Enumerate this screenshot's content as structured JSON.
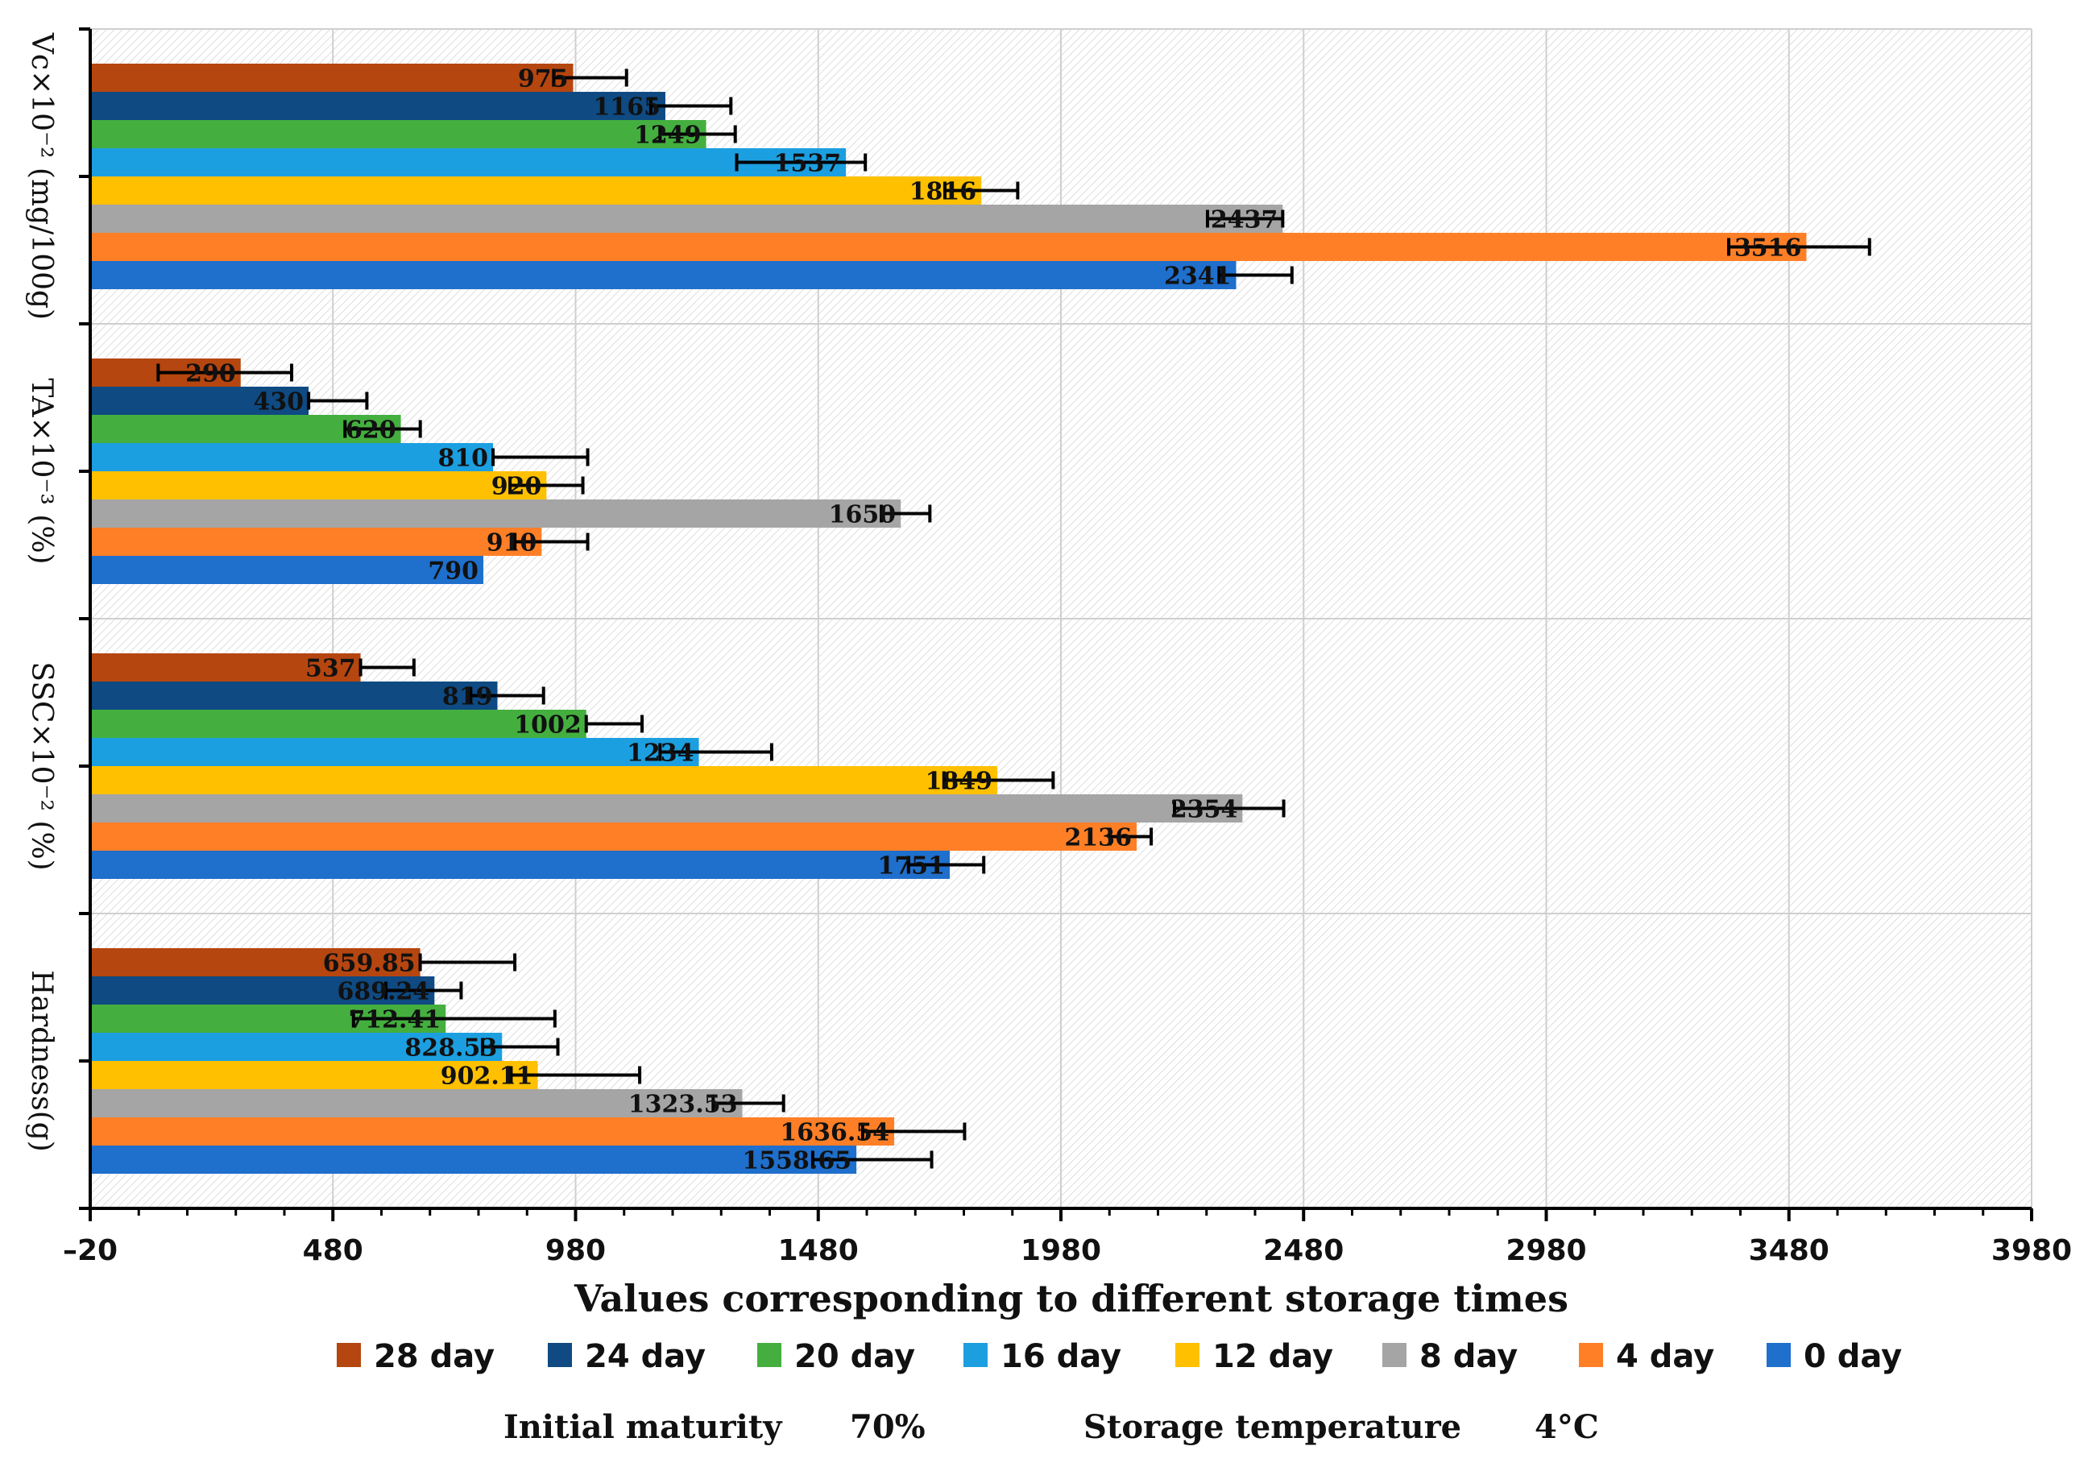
{
  "chart_data": {
    "type": "bar",
    "orientation": "horizontal",
    "xlabel": "Values corresponding to different storage times",
    "xlim": [
      -20,
      3980
    ],
    "xticks": [
      -20,
      480,
      980,
      1480,
      1980,
      2480,
      2980,
      3480,
      3980
    ],
    "xtick_labels": [
      "–20",
      "480",
      "980",
      "1480",
      "1980",
      "2480",
      "2980",
      "3480",
      "3980"
    ],
    "grid": true,
    "legend_position": "bottom",
    "categories": [
      "Vc×10⁻² (mg/100g)",
      "TA×10⁻³ (%)",
      "SSC×10⁻² (%)",
      "Hardness(g)"
    ],
    "series": [
      {
        "name": "28 day",
        "color": "#B5460F",
        "values": [
          975,
          290,
          537,
          659.85
        ],
        "labels": [
          "975",
          "290",
          "537",
          "659.85"
        ],
        "err_low": [
          40,
          170,
          0,
          0
        ],
        "err_high": [
          110,
          105,
          110,
          195
        ]
      },
      {
        "name": "24 day",
        "color": "#0F4A82",
        "values": [
          1165,
          430,
          819,
          689.24
        ],
        "labels": [
          "1165",
          "430",
          "819",
          "689.24"
        ],
        "err_low": [
          30,
          0,
          55,
          100
        ],
        "err_high": [
          135,
          120,
          95,
          55
        ]
      },
      {
        "name": "20 day",
        "color": "#44AF3F",
        "values": [
          1249,
          620,
          1002,
          712.41
        ],
        "labels": [
          "1249",
          "620",
          "1002",
          "712.41"
        ],
        "err_low": [
          95,
          115,
          0,
          190
        ],
        "err_high": [
          60,
          40,
          115,
          225
        ]
      },
      {
        "name": "16 day",
        "color": "#1C9FE0",
        "values": [
          1537,
          810,
          1234,
          828.53
        ],
        "labels": [
          "1537",
          "810",
          "1234",
          "828.53"
        ],
        "err_low": [
          225,
          0,
          80,
          40
        ],
        "err_high": [
          40,
          195,
          150,
          115
        ]
      },
      {
        "name": "12 day",
        "color": "#FFC000",
        "values": [
          1816,
          920,
          1849,
          902.11
        ],
        "labels": [
          "1816",
          "920",
          "1849",
          "902.11"
        ],
        "err_low": [
          75,
          75,
          110,
          55
        ],
        "err_high": [
          75,
          75,
          115,
          210
        ]
      },
      {
        "name": "8 day",
        "color": "#A5A5A5",
        "values": [
          2437,
          1650,
          2354,
          1323.53
        ],
        "labels": [
          "2437",
          "1650",
          "2354",
          "1323.53"
        ],
        "err_low": [
          155,
          40,
          140,
          60
        ],
        "err_high": [
          0,
          60,
          85,
          85
        ]
      },
      {
        "name": "4 day",
        "color": "#FF7F27",
        "values": [
          3516,
          910,
          2136,
          1636.54
        ],
        "labels": [
          "3516",
          "910",
          "2136",
          "1636.54"
        ],
        "err_low": [
          160,
          55,
          55,
          65
        ],
        "err_high": [
          130,
          95,
          30,
          145
        ]
      },
      {
        "name": "0 day",
        "color": "#1F6FCC",
        "values": [
          2341,
          790,
          1751,
          1558.65
        ],
        "labels": [
          "2341",
          "790",
          "1751",
          "1558.65"
        ],
        "err_low": [
          35,
          0,
          85,
          90
        ],
        "err_high": [
          115,
          0,
          70,
          155
        ]
      }
    ]
  },
  "footer": {
    "maturity_label": "Initial  maturity",
    "maturity_value": "70%",
    "temperature_label": "Storage temperature",
    "temperature_value": "4°C"
  }
}
